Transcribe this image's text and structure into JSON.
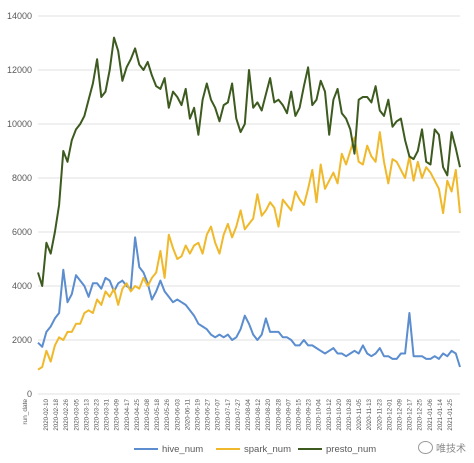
{
  "chart_data": {
    "type": "line",
    "xlabel": "run_date",
    "ylim": [
      0,
      14000
    ],
    "y_ticks": [
      0,
      2000,
      4000,
      6000,
      8000,
      10000,
      12000,
      14000
    ],
    "x_tick_labels": [
      "2020-02-10",
      "2020-02-18",
      "2020-02-26",
      "2020-03-05",
      "2020-03-13",
      "2020-03-23",
      "2020-03-31",
      "2020-04-09",
      "2020-04-17",
      "2020-04-25",
      "2020-05-08",
      "2020-05-18",
      "2020-05-26",
      "2020-06-03",
      "2020-06-11",
      "2020-06-19",
      "2020-06-27",
      "2020-07-07",
      "2020-07-17",
      "2020-07-27",
      "2020-08-04",
      "2020-08-12",
      "2020-08-20",
      "2020-08-28",
      "2020-09-07",
      "2020-09-15",
      "2020-09-23",
      "2020-10-04",
      "2020-10-12",
      "2020-10-20",
      "2020-10-28",
      "2020-11-05",
      "2020-11-13",
      "2020-11-23",
      "2020-12-01",
      "2020-12-09",
      "2020-12-17",
      "2020-12-25",
      "2021-01-06",
      "2021-01-14",
      "2021-01-25"
    ],
    "grid": "horizontal",
    "legend_position": "bottom",
    "series": [
      {
        "name": "hive_num",
        "color": "#5b8dcf",
        "values": [
          1900,
          1750,
          2300,
          2500,
          2800,
          3000,
          4600,
          3400,
          3700,
          4400,
          4200,
          4000,
          3600,
          4100,
          4100,
          3900,
          4300,
          4200,
          3800,
          4100,
          4200,
          4000,
          3900,
          5800,
          4700,
          4500,
          4100,
          3500,
          3800,
          4200,
          3800,
          3600,
          3400,
          3500,
          3400,
          3300,
          3100,
          2900,
          2600,
          2500,
          2400,
          2200,
          2100,
          2200,
          2100,
          2200,
          2000,
          2100,
          2400,
          2900,
          2600,
          2200,
          2000,
          2200,
          2800,
          2300,
          2300,
          2300,
          2100,
          2100,
          2000,
          1800,
          1800,
          2000,
          1800,
          1800,
          1700,
          1600,
          1500,
          1600,
          1700,
          1500,
          1500,
          1400,
          1500,
          1600,
          1500,
          1800,
          1500,
          1400,
          1500,
          1700,
          1400,
          1400,
          1300,
          1300,
          1500,
          1500,
          3000,
          1400,
          1400,
          1400,
          1300,
          1300,
          1400,
          1300,
          1500,
          1400,
          1600,
          1500,
          1000
        ]
      },
      {
        "name": "spark_num",
        "color": "#f0b92c",
        "values": [
          900,
          1000,
          1600,
          1200,
          1800,
          2100,
          2000,
          2300,
          2300,
          2600,
          2600,
          3000,
          3100,
          3000,
          3500,
          3300,
          3800,
          3600,
          3900,
          3300,
          3900,
          4100,
          3800,
          4000,
          3900,
          4300,
          4000,
          4300,
          4500,
          5300,
          4300,
          5900,
          5400,
          5000,
          5100,
          5500,
          5200,
          5500,
          5600,
          5200,
          5900,
          6200,
          5600,
          5200,
          5900,
          6300,
          5800,
          6200,
          6800,
          6100,
          6300,
          6500,
          7400,
          6600,
          6800,
          7100,
          6900,
          6200,
          7200,
          7000,
          6800,
          7500,
          7200,
          7000,
          7600,
          8300,
          7100,
          8500,
          7600,
          7900,
          8200,
          7800,
          8900,
          8500,
          9000,
          9500,
          8600,
          8500,
          9200,
          8800,
          8600,
          9700,
          8600,
          7800,
          8700,
          8600,
          8300,
          8000,
          8800,
          7900,
          8600,
          8000,
          8400,
          8200,
          7900,
          7600,
          6700,
          7900,
          7500,
          8300,
          6700
        ]
      },
      {
        "name": "presto_num",
        "color": "#3d5a1f",
        "values": [
          4500,
          4000,
          5600,
          5200,
          6000,
          7000,
          9000,
          8600,
          9400,
          9800,
          10000,
          10300,
          10900,
          11500,
          12400,
          11000,
          11200,
          12000,
          13200,
          12700,
          11600,
          12100,
          12400,
          12800,
          12200,
          12000,
          12300,
          11800,
          11400,
          11300,
          11700,
          10600,
          11200,
          11000,
          10700,
          11300,
          10200,
          10600,
          9600,
          10900,
          11500,
          10900,
          10600,
          10100,
          10700,
          10800,
          11500,
          10200,
          9700,
          10000,
          12000,
          10600,
          10800,
          10500,
          11100,
          11700,
          10800,
          10900,
          10700,
          10400,
          11200,
          10300,
          10600,
          11400,
          12100,
          10700,
          10900,
          11600,
          11200,
          9600,
          10900,
          11300,
          10400,
          10200,
          9800,
          8900,
          10900,
          11000,
          11000,
          10800,
          11400,
          10500,
          10300,
          10900,
          9900,
          10100,
          10200,
          9400,
          8800,
          8700,
          9000,
          9800,
          8600,
          8500,
          9800,
          9600,
          8400,
          8100,
          9700,
          9100,
          8400
        ]
      }
    ]
  },
  "watermark": {
    "text": "唯技术"
  }
}
